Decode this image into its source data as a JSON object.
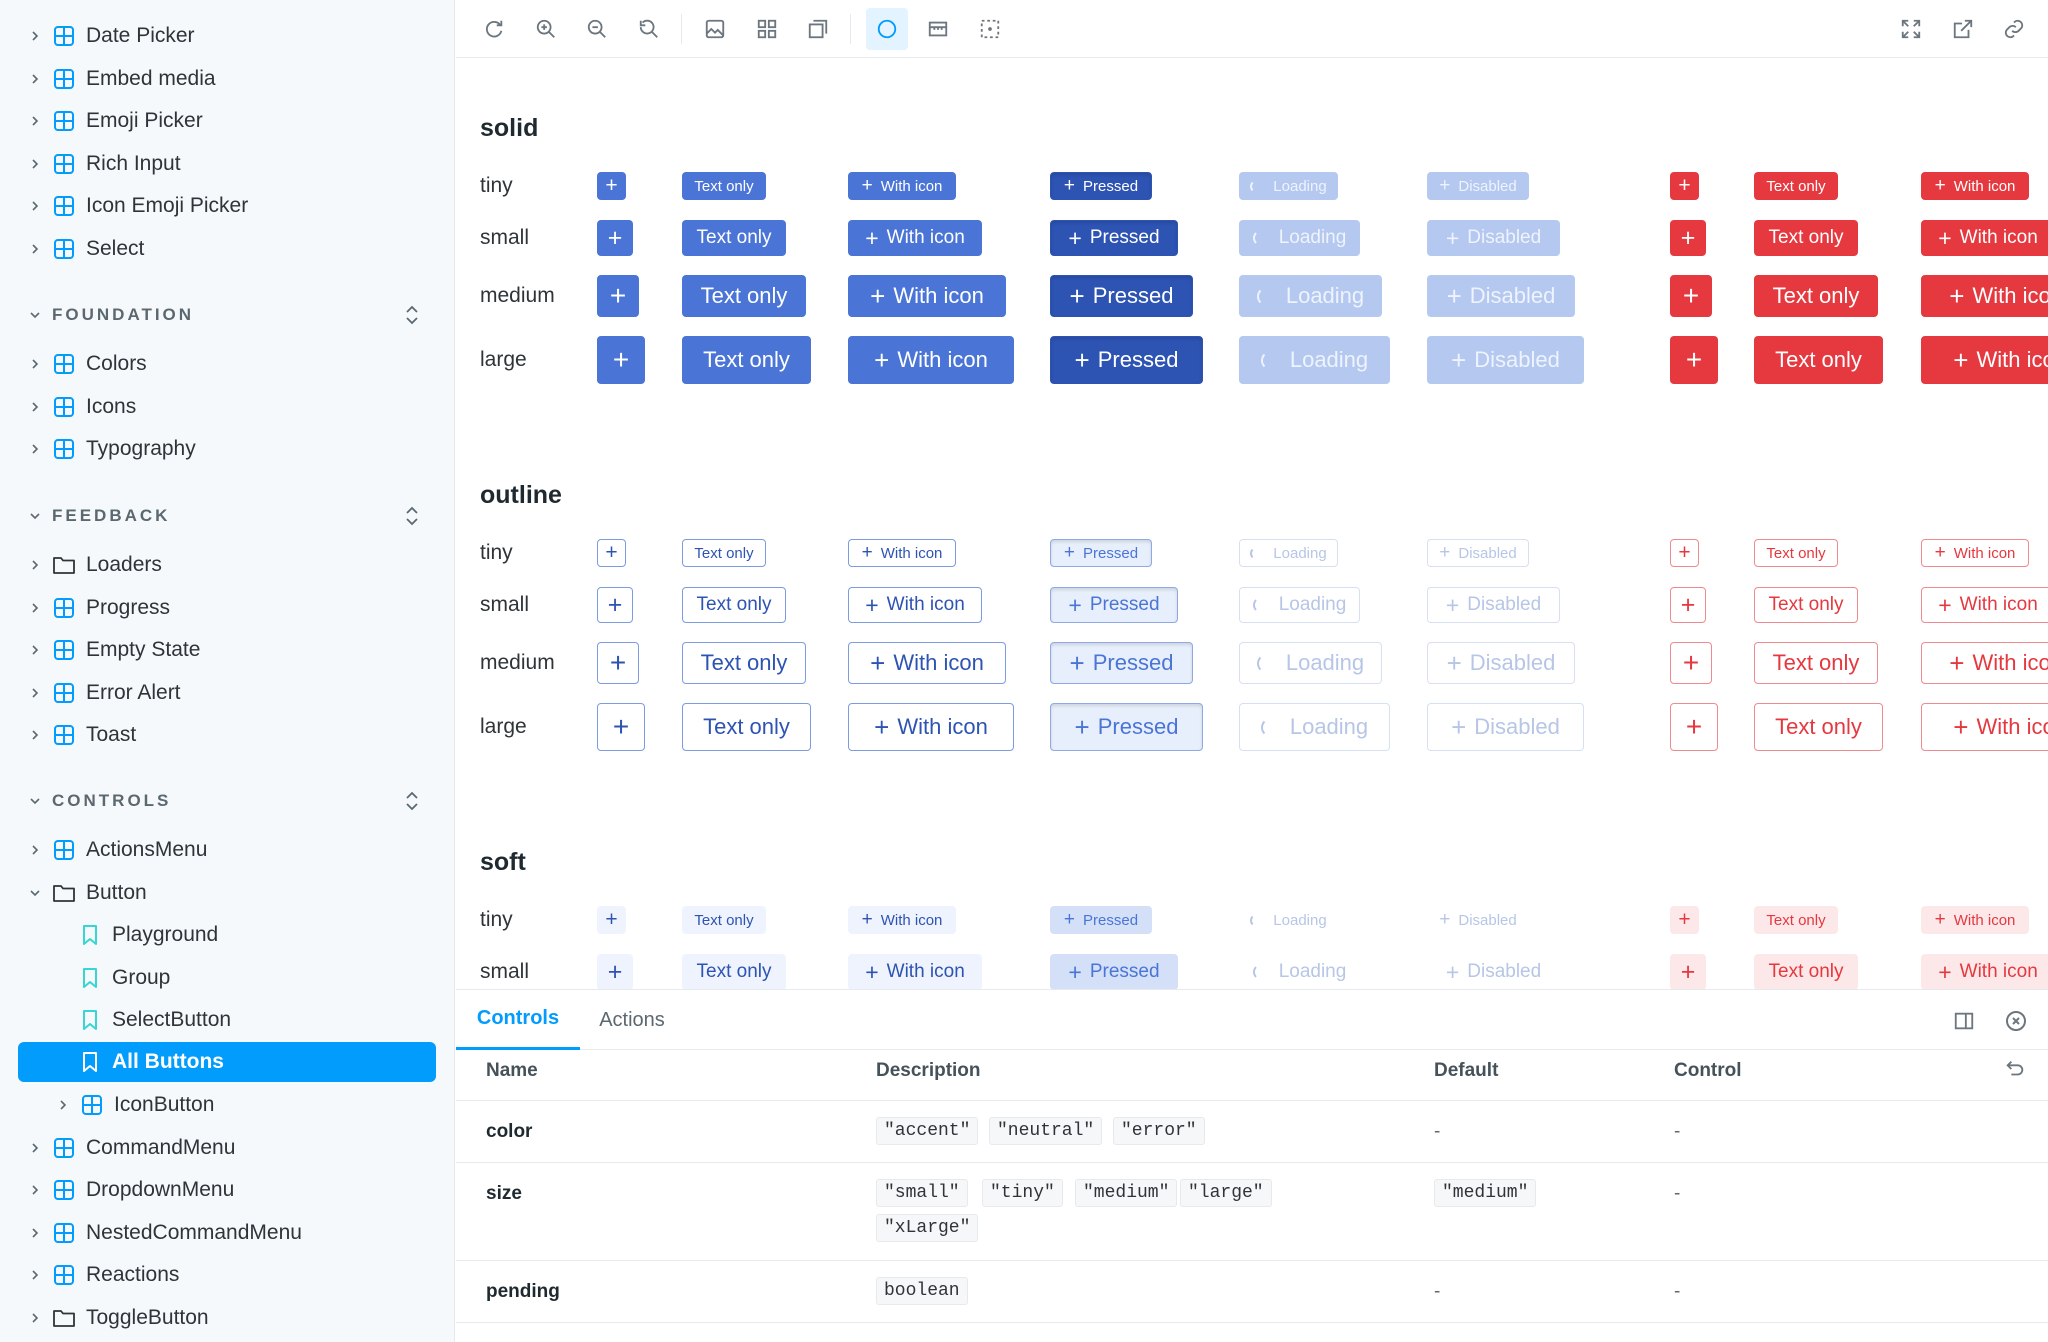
{
  "sidebar": {
    "items_top": [
      {
        "label": "Date Picker"
      },
      {
        "label": "Embed media"
      },
      {
        "label": "Emoji Picker"
      },
      {
        "label": "Rich Input"
      },
      {
        "label": "Icon Emoji Picker"
      },
      {
        "label": "Select"
      }
    ],
    "foundation": {
      "heading": "FOUNDATION",
      "items": [
        {
          "label": "Colors"
        },
        {
          "label": "Icons"
        },
        {
          "label": "Typography"
        }
      ]
    },
    "feedback": {
      "heading": "FEEDBACK",
      "items": [
        {
          "label": "Loaders"
        },
        {
          "label": "Progress"
        },
        {
          "label": "Empty State"
        },
        {
          "label": "Error Alert"
        },
        {
          "label": "Toast"
        }
      ]
    },
    "controls": {
      "heading": "CONTROLS",
      "items": [
        {
          "label": "ActionsMenu"
        },
        {
          "label": "Button"
        },
        {
          "label": "Playground"
        },
        {
          "label": "Group"
        },
        {
          "label": "SelectButton"
        },
        {
          "label": "All Buttons"
        },
        {
          "label": "IconButton"
        },
        {
          "label": "CommandMenu"
        },
        {
          "label": "DropdownMenu"
        },
        {
          "label": "NestedCommandMenu"
        },
        {
          "label": "Reactions"
        },
        {
          "label": "ToggleButton"
        }
      ]
    }
  },
  "toolbar": {
    "icons": [
      "reload-icon",
      "zoom-in-icon",
      "zoom-out-icon",
      "zoom-reset-icon",
      "background-icon",
      "grid-icon",
      "measure-icon",
      "outline-icon",
      "viewport-icon",
      "box-select-icon",
      "fullscreen-icon",
      "open-new-tab-icon",
      "copy-link-icon"
    ]
  },
  "canvas": {
    "sections": [
      {
        "title": "solid"
      },
      {
        "title": "outline"
      },
      {
        "title": "soft"
      }
    ],
    "sizes": [
      "tiny",
      "small",
      "medium",
      "large"
    ],
    "button_labels": {
      "plus": "+",
      "text_only": "Text only",
      "with_icon": "With icon",
      "pressed": "Pressed",
      "loading": "Loading",
      "disabled": "Disabled",
      "with_icon_cut": "With ico"
    },
    "colors": {
      "accent": "#4a75d6",
      "accent_pressed": "#2d53b3",
      "accent_disabled": "#b5c8ef",
      "error": "#e5383f"
    }
  },
  "panel": {
    "tabs": [
      {
        "label": "Controls"
      },
      {
        "label": "Actions"
      }
    ],
    "headers": {
      "name": "Name",
      "description": "Description",
      "default": "Default",
      "control": "Control"
    },
    "rows": [
      {
        "name": "color",
        "desc": [
          "\"accent\"",
          "\"neutral\"",
          "\"error\""
        ],
        "default": "-",
        "control": "-"
      },
      {
        "name": "size",
        "desc": [
          "\"small\"",
          "\"tiny\"",
          "\"medium\"",
          "\"large\"",
          "\"xLarge\""
        ],
        "default": "\"medium\"",
        "control": "-"
      },
      {
        "name": "pending",
        "desc": [
          "boolean"
        ],
        "default": "-",
        "control": "-"
      }
    ]
  }
}
